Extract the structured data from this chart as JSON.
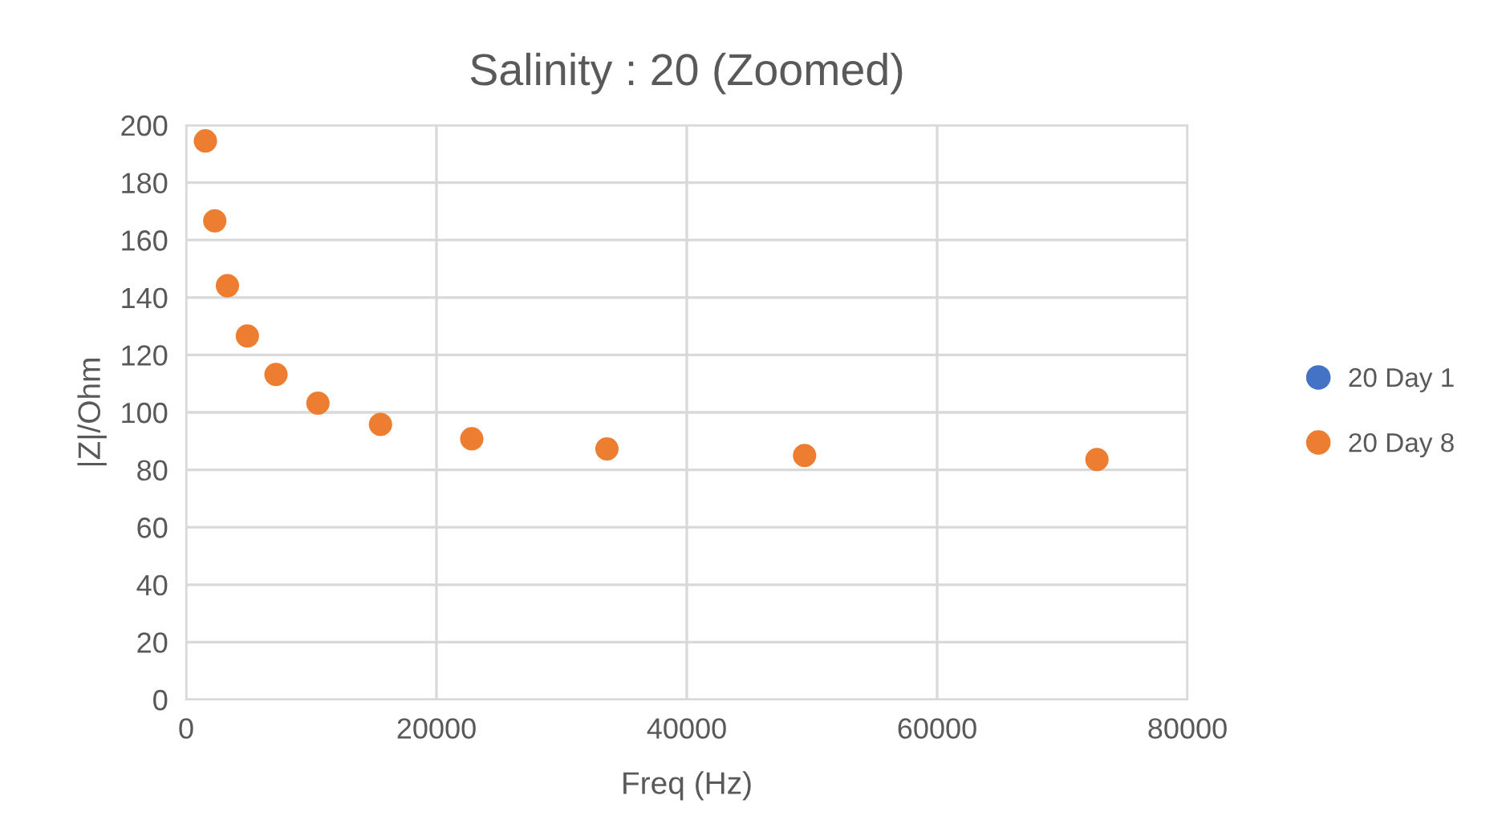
{
  "chart_data": {
    "type": "scatter",
    "title": "Salinity : 20 (Zoomed)",
    "xlabel": "Freq (Hz)",
    "ylabel": "|Z|/Ohm",
    "x": [
      1540,
      2290,
      3300,
      4890,
      7180,
      10530,
      15530,
      22820,
      33620,
      49410,
      72770
    ],
    "series": [
      {
        "name": "20 Day 1",
        "color": "#4472c4",
        "values": [
          null,
          null,
          null,
          null,
          null,
          null,
          null,
          null,
          null,
          null,
          null
        ]
      },
      {
        "name": "20 Day 8",
        "color": "#ed7d31",
        "values": [
          194.5,
          166.7,
          144.1,
          126.6,
          113.2,
          103.2,
          95.8,
          90.8,
          87.3,
          85.0,
          83.6
        ]
      }
    ],
    "xlim": [
      0,
      80000
    ],
    "xticks": [
      0,
      20000,
      40000,
      60000,
      80000
    ],
    "ylim": [
      0,
      200
    ],
    "yticks": [
      0,
      20,
      40,
      60,
      80,
      100,
      120,
      140,
      160,
      180,
      200
    ],
    "grid": true,
    "legend": "right",
    "marker": "circle"
  }
}
